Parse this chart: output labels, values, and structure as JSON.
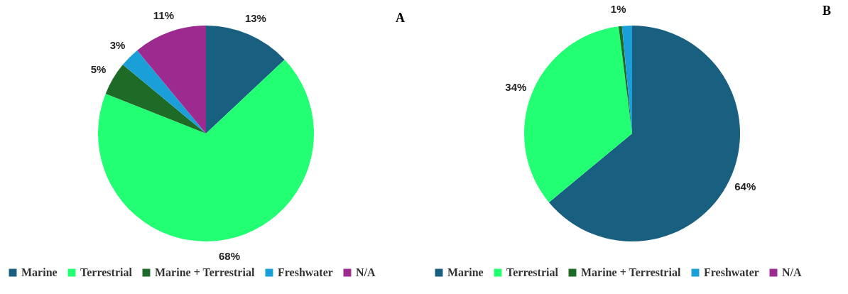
{
  "chart_data": [
    {
      "type": "pie",
      "title": "A",
      "categories": [
        "Marine",
        "Terrestrial",
        "Marine + Terrestrial",
        "Freshwater",
        "N/A"
      ],
      "values": [
        13,
        68,
        5,
        3,
        11
      ],
      "colors": [
        "#185f80",
        "#22ff72",
        "#1e6b28",
        "#1a9fd8",
        "#9c2a8f"
      ],
      "value_labels": [
        "13%",
        "68%",
        "5%",
        "3%",
        "11%"
      ],
      "legend": "bottom"
    },
    {
      "type": "pie",
      "title": "B",
      "categories": [
        "Marine",
        "Terrestrial",
        "Marine + Terrestrial",
        "Freshwater",
        "N/A"
      ],
      "values": [
        64,
        34,
        0.5,
        1.5,
        0
      ],
      "colors": [
        "#185f80",
        "#22ff72",
        "#1e6b28",
        "#1a9fd8",
        "#9c2a8f"
      ],
      "value_labels": [
        "64%",
        "34%",
        "1%",
        null,
        null
      ],
      "legend": "bottom"
    }
  ]
}
